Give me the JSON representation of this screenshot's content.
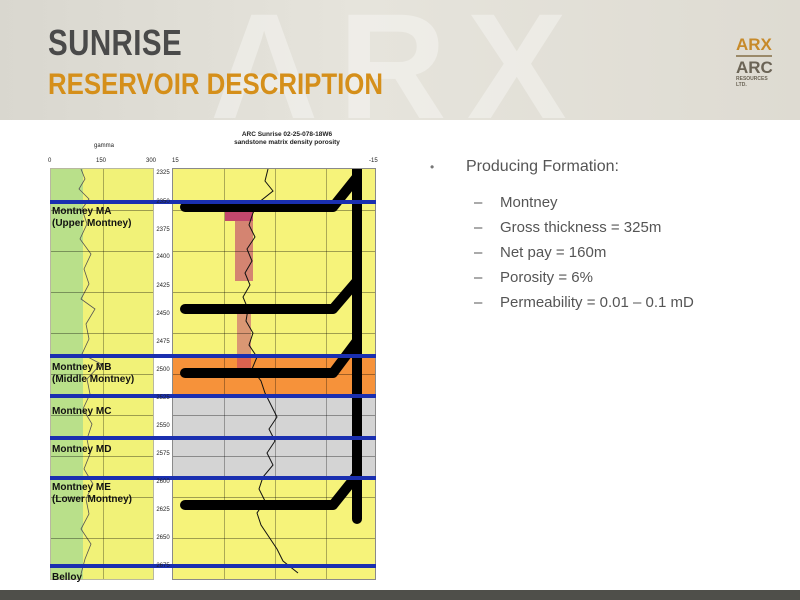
{
  "slide": {
    "title": "SUNRISE",
    "subtitle": "RESERVOIR DESCRIPTION",
    "background_letters": "ARX"
  },
  "logo": {
    "arx": "ARX",
    "arc": "ARC",
    "line1": "RESOURCES",
    "line2": "LTD."
  },
  "log": {
    "title_line1": "ARC Sunrise 02-25-078-18W6",
    "title_line2": "sandstone matrix density porosity",
    "gamma_title": "gamma",
    "gamma_scale": [
      "0",
      "150",
      "300"
    ],
    "density_scale": [
      "15",
      "-15"
    ],
    "depths": [
      "2325",
      "2350",
      "2375",
      "2400",
      "2425",
      "2450",
      "2475",
      "2500",
      "2525",
      "2550",
      "2575",
      "2600",
      "2625",
      "2650",
      "2675"
    ],
    "formations": [
      {
        "line1": "Montney MA",
        "line2": "(Upper Montney)"
      },
      {
        "line1": "Montney MB",
        "line2": "(Middle Montney)"
      },
      {
        "line1": "Montney MC",
        "line2": ""
      },
      {
        "line1": "Montney MD",
        "line2": ""
      },
      {
        "line1": "Montney ME",
        "line2": "(Lower Montney)"
      },
      {
        "line1": "Belloy",
        "line2": ""
      }
    ],
    "colors": {
      "pay_yellow": "#f6f37a",
      "mb_orange": "#f6923a",
      "mc_md_gray": "#d4d4d4",
      "tops_blue": "#1a2fb0",
      "pay_magenta": "#b8286a",
      "gamma_green": "#b9e08a"
    }
  },
  "bullets": {
    "main": "Producing Formation:",
    "items": [
      "Montney",
      "Gross thickness = 325m",
      "Net pay = 160m",
      "Porosity = 6%",
      "Permeability = 0.01 – 0.1 mD"
    ]
  }
}
